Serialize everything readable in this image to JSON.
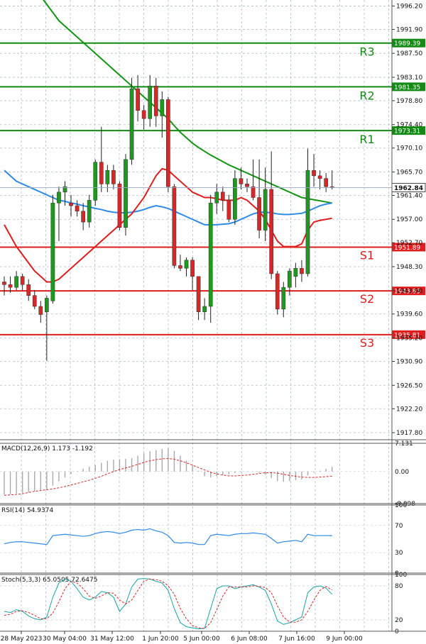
{
  "chart_data": {
    "type": "candlestick",
    "price_axis": {
      "ylim": [
        1916.5,
        1997.3
      ],
      "ticks": [
        "1996.20",
        "1991.90",
        "1987.50",
        "1983.10",
        "1978.80",
        "1974.40",
        "1970.10",
        "1965.70",
        "1961.40",
        "1957.00",
        "1952.70",
        "1948.30",
        "1943.90",
        "1939.60",
        "1935.20",
        "1930.90",
        "1926.50",
        "1922.20",
        "1917.80"
      ]
    },
    "x_axis": {
      "labels": [
        "28 May 2023",
        "30 May 04:00",
        "31 May 12:00",
        "1 Jun 20:00",
        "5 Jun 00:00",
        "6 Jun 08:00",
        "7 Jun 16:00",
        "9 Jun 00:00"
      ]
    },
    "last_price": "1962.84",
    "levels": [
      {
        "name": "R3",
        "value": 1989.39,
        "label": "1989.39",
        "color": "#138a13"
      },
      {
        "name": "R2",
        "value": 1981.35,
        "label": "1981.35",
        "color": "#138a13"
      },
      {
        "name": "R1",
        "value": 1973.31,
        "label": "1973.31",
        "color": "#138a13"
      },
      {
        "name": "S1",
        "value": 1951.89,
        "label": "1951.89",
        "color": "#e01e1e"
      },
      {
        "name": "S2",
        "value": 1943.85,
        "label": "1943.85",
        "color": "#e01e1e"
      },
      {
        "name": "S3",
        "value": 1935.81,
        "label": "1935.81",
        "color": "#e01e1e"
      }
    ],
    "candles": [
      [
        1945.5,
        1946.5,
        1943.0,
        1945.0
      ],
      [
        1945.0,
        1946.5,
        1943.5,
        1944.5
      ],
      [
        1944.5,
        1947.5,
        1944.0,
        1946.5
      ],
      [
        1946.5,
        1947.0,
        1944.0,
        1945.0
      ],
      [
        1945.0,
        1946.0,
        1942.0,
        1943.0
      ],
      [
        1943.0,
        1944.0,
        1940.5,
        1941.0
      ],
      [
        1941.0,
        1942.0,
        1938.0,
        1939.5
      ],
      [
        1940.0,
        1943.0,
        1931.0,
        1942.5
      ],
      [
        1942.0,
        1961.5,
        1941.5,
        1960.0
      ],
      [
        1960.0,
        1963.0,
        1953.0,
        1962.0
      ],
      [
        1962.0,
        1964.0,
        1959.5,
        1963.0
      ],
      [
        1960.0,
        1961.5,
        1957.5,
        1959.5
      ],
      [
        1959.5,
        1960.5,
        1957.5,
        1958.5
      ],
      [
        1958.5,
        1960.0,
        1955.0,
        1956.5
      ],
      [
        1956.5,
        1961.5,
        1955.5,
        1960.5
      ],
      [
        1960.5,
        1968.0,
        1959.5,
        1967.5
      ],
      [
        1967.5,
        1974.0,
        1962.0,
        1963.5
      ],
      [
        1963.5,
        1967.0,
        1962.0,
        1966.0
      ],
      [
        1966.0,
        1967.0,
        1962.5,
        1963.5
      ],
      [
        1963.5,
        1964.0,
        1955.0,
        1955.5
      ],
      [
        1955.5,
        1969.0,
        1954.0,
        1968.0
      ],
      [
        1968.0,
        1983.0,
        1967.0,
        1981.0
      ],
      [
        1981.0,
        1983.5,
        1975.0,
        1977.0
      ],
      [
        1977.0,
        1978.0,
        1973.5,
        1975.5
      ],
      [
        1975.5,
        1983.5,
        1974.0,
        1981.5
      ],
      [
        1981.5,
        1983.0,
        1974.0,
        1976.0
      ],
      [
        1976.0,
        1980.5,
        1972.0,
        1979.0
      ],
      [
        1979.0,
        1979.5,
        1962.0,
        1963.0
      ],
      [
        1963.0,
        1963.5,
        1948.0,
        1948.5
      ],
      [
        1948.5,
        1950.5,
        1947.5,
        1948.0
      ],
      [
        1948.0,
        1950.0,
        1946.5,
        1949.5
      ],
      [
        1949.5,
        1950.0,
        1944.0,
        1946.5
      ],
      [
        1946.5,
        1946.5,
        1938.5,
        1940.0
      ],
      [
        1940.0,
        1942.5,
        1938.5,
        1941.0
      ],
      [
        1941.0,
        1961.5,
        1938.0,
        1960.0
      ],
      [
        1960.0,
        1963.5,
        1958.0,
        1962.0
      ],
      [
        1962.0,
        1963.0,
        1958.5,
        1960.5
      ],
      [
        1960.5,
        1961.5,
        1956.5,
        1957.0
      ],
      [
        1957.0,
        1966.0,
        1956.0,
        1964.5
      ],
      [
        1964.5,
        1966.5,
        1962.5,
        1963.5
      ],
      [
        1963.5,
        1964.5,
        1962.0,
        1963.0
      ],
      [
        1963.0,
        1968.0,
        1960.5,
        1961.0
      ],
      [
        1961.0,
        1968.0,
        1953.5,
        1955.0
      ],
      [
        1955.0,
        1966.5,
        1953.0,
        1962.5
      ],
      [
        1962.5,
        1969.5,
        1946.0,
        1947.0
      ],
      [
        1947.0,
        1947.5,
        1939.5,
        1940.5
      ],
      [
        1940.5,
        1945.5,
        1939.0,
        1944.5
      ],
      [
        1944.5,
        1948.0,
        1943.0,
        1947.5
      ],
      [
        1946.5,
        1949.0,
        1944.5,
        1948.0
      ],
      [
        1948.0,
        1949.5,
        1945.5,
        1947.0
      ],
      [
        1947.0,
        1970.0,
        1946.5,
        1966.0
      ],
      [
        1966.0,
        1969.0,
        1963.0,
        1965.0
      ],
      [
        1965.0,
        1966.0,
        1962.5,
        1964.5
      ],
      [
        1964.5,
        1965.5,
        1962.0,
        1963.0
      ],
      [
        1963.0,
        1966.0,
        1962.5,
        1962.84
      ]
    ],
    "ma_green": [
      2007,
      2005.5,
      2004,
      2002.5,
      2001,
      1999.5,
      1998,
      1996.5,
      1995,
      1993.5,
      1992.5,
      1991.5,
      1990.5,
      1989.5,
      1988.5,
      1987.5,
      1986.5,
      1985.5,
      1984.5,
      1983.5,
      1982.5,
      1981.5,
      1980.5,
      1979.5,
      1978.5,
      1977.5,
      1976.5,
      1975.5,
      1974.2,
      1973,
      1972,
      1971,
      1970.2,
      1969.5,
      1968.8,
      1968.2,
      1967.6,
      1967,
      1966.5,
      1966,
      1965.5,
      1965,
      1964.5,
      1964,
      1963.5,
      1963,
      1962.5,
      1962,
      1961.5,
      1961,
      1960.8,
      1960.6,
      1960.4,
      1960.2,
      1960.0
    ],
    "ma_blue": [
      1966,
      1965,
      1964,
      1963.5,
      1963,
      1962.5,
      1962,
      1961.5,
      1961,
      1960.5,
      1960.3,
      1960,
      1959.8,
      1959.5,
      1959.3,
      1959,
      1958.8,
      1958.5,
      1958.3,
      1958.2,
      1958.2,
      1958.3,
      1958.5,
      1958.8,
      1959.2,
      1959.5,
      1959.3,
      1959,
      1958.5,
      1958,
      1957.5,
      1957,
      1956.5,
      1956,
      1956,
      1956,
      1956.1,
      1956.2,
      1956.5,
      1957,
      1957.5,
      1958,
      1958.3,
      1958.3,
      1958.2,
      1958,
      1957.9,
      1957.9,
      1958,
      1958.1,
      1958.5,
      1959,
      1959.5,
      1959.8,
      1960.0
    ],
    "ma_red": [
      1956,
      1954,
      1952,
      1950.5,
      1949,
      1947.5,
      1946.5,
      1945.5,
      1945.5,
      1946,
      1947,
      1948,
      1949,
      1950,
      1951,
      1952,
      1953,
      1954,
      1955,
      1956,
      1957,
      1958,
      1959.5,
      1961,
      1963,
      1965,
      1966.3,
      1966,
      1965,
      1964,
      1963,
      1962,
      1961.5,
      1961,
      1961,
      1960.8,
      1960.5,
      1960.5,
      1960.5,
      1961,
      1960.5,
      1959.5,
      1958.5,
      1957,
      1955,
      1953,
      1952,
      1952,
      1952,
      1952.5,
      1955,
      1956.5,
      1956.8,
      1957,
      1957.2
    ],
    "macd": {
      "label": "MACD(12,26,9) 1.173 -1.192",
      "ylim": [
        -8.098,
        7.131
      ],
      "ticks": [
        "7.131",
        "0.00",
        "-8.098"
      ],
      "hist": [
        -5.8,
        -5.8,
        -5.6,
        -5.4,
        -5.2,
        -5.0,
        -4.8,
        -4.6,
        -3.6,
        -2.5,
        -1.5,
        -0.6,
        0.1,
        0.7,
        1.2,
        1.6,
        2.2,
        2.7,
        3.0,
        3.1,
        3.2,
        3.4,
        4.0,
        4.6,
        5.1,
        5.4,
        5.7,
        5.9,
        5.2,
        4.0,
        2.8,
        1.5,
        0.2,
        -1.2,
        -1.5,
        -1.2,
        -0.9,
        -0.7,
        -0.4,
        -0.2,
        -0.1,
        0.0,
        -0.3,
        -0.8,
        -1.7,
        -2.4,
        -2.6,
        -2.4,
        -2.2,
        -2.0,
        -1.0,
        -0.3,
        0.2,
        0.7,
        1.17
      ],
      "signal": [
        -6.0,
        -5.9,
        -5.8,
        -5.6,
        -5.3,
        -5.0,
        -4.8,
        -4.6,
        -4.4,
        -4.1,
        -3.8,
        -3.4,
        -3.0,
        -2.6,
        -2.2,
        -1.7,
        -1.2,
        -0.6,
        0.0,
        0.5,
        0.9,
        1.3,
        1.8,
        2.3,
        2.7,
        3.0,
        3.2,
        3.3,
        3.1,
        2.7,
        2.2,
        1.6,
        1.0,
        0.4,
        -0.2,
        -0.6,
        -0.9,
        -1.1,
        -1.1,
        -1.0,
        -0.9,
        -0.7,
        -0.5,
        -0.3,
        -0.3,
        -0.4,
        -0.7,
        -1.0,
        -1.2,
        -1.4,
        -1.5,
        -1.5,
        -1.4,
        -1.3,
        -1.19
      ]
    },
    "rsi": {
      "label": "RSI(14) 54.9374",
      "ylim": [
        0,
        100
      ],
      "ticks": [
        "100",
        "70",
        "30",
        "0"
      ],
      "values": [
        43,
        45,
        46,
        46,
        45,
        44,
        43,
        42,
        55,
        56,
        57,
        56,
        55,
        54,
        55,
        58,
        60,
        61,
        60,
        58,
        60,
        63,
        64,
        63,
        65,
        62,
        60,
        55,
        45,
        44,
        45,
        44,
        42,
        42,
        55,
        57,
        56,
        55,
        57,
        58,
        58,
        59,
        58,
        57,
        51,
        44,
        46,
        47,
        48,
        46,
        57,
        55,
        55,
        55,
        54.94
      ]
    },
    "stoch": {
      "label": "Stoch(5,3,3) 65.0505 72.6475",
      "ylim": [
        0,
        100
      ],
      "ticks": [
        "100",
        "80",
        "20",
        "0"
      ],
      "k": [
        35,
        33,
        38,
        35,
        27,
        22,
        20,
        25,
        60,
        85,
        92,
        88,
        75,
        60,
        55,
        60,
        70,
        68,
        60,
        35,
        48,
        78,
        92,
        93,
        92,
        88,
        85,
        72,
        40,
        15,
        8,
        6,
        4,
        5,
        40,
        75,
        80,
        80,
        75,
        78,
        80,
        82,
        78,
        72,
        48,
        18,
        12,
        15,
        20,
        25,
        68,
        78,
        80,
        76,
        65.05
      ],
      "d": [
        28,
        30,
        35,
        36,
        33,
        28,
        22,
        22,
        32,
        52,
        75,
        88,
        85,
        75,
        62,
        58,
        62,
        68,
        67,
        55,
        48,
        55,
        72,
        88,
        92,
        91,
        88,
        80,
        65,
        40,
        22,
        10,
        6,
        5,
        15,
        38,
        62,
        78,
        78,
        78,
        78,
        80,
        79,
        77,
        68,
        45,
        25,
        16,
        16,
        20,
        35,
        55,
        72,
        79,
        72.65
      ]
    }
  }
}
